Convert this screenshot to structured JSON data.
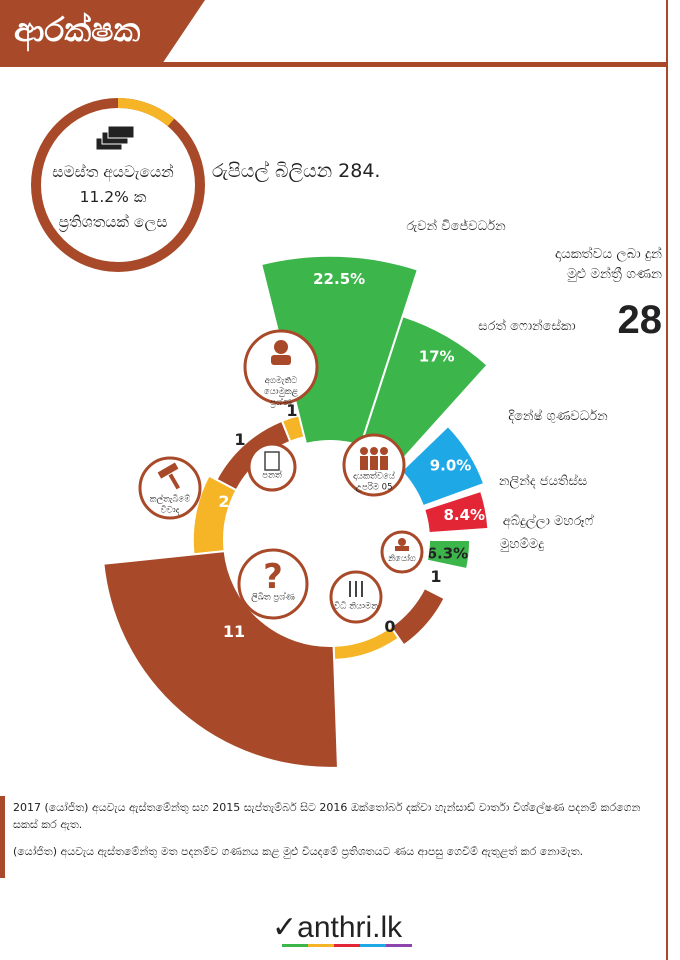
{
  "header": {
    "title": "ආරක්ෂක",
    "accent_color": "#a84a2a"
  },
  "budget": {
    "amount_text": "රුපියල් බිලියන 284.",
    "share_lines": [
      "සමස්ත අයවැයෙන්",
      "11.2% ක",
      "ප්‍රතිශතයක් ලෙස"
    ],
    "share_value": 11.2,
    "icon": "money-stack-icon"
  },
  "side_stat": {
    "label": "දායකත්වය ලබා දුන් මුළු මන්ත්‍රී ගණන",
    "value": "28"
  },
  "chart_data": [
    {
      "type": "bar",
      "subtype": "radial-bar",
      "title": "",
      "unit": "%",
      "categories": [
        "රුවන් විජේවර්ධන",
        "සරත් ෆොන්සේකා",
        "දිනේෂ් ගුණවර්ධන",
        "නලින්ද ජයතිස්ස",
        "අබ්දුල්ලා මහරූෆ් මුහම්මදු"
      ],
      "values": [
        22.5,
        17,
        9.0,
        8.4,
        6.3
      ],
      "value_labels": [
        "22.5%",
        "17%",
        "9.0%",
        "8.4%",
        "6.3%"
      ],
      "colors": [
        "#3cb54a",
        "#3cb54a",
        "#1fa8e6",
        "#e32636",
        "#3cb54a"
      ],
      "center_icon": "three-people-icon",
      "center_label": [
        "දායකත්වයේ",
        "උපරිම 05"
      ]
    },
    {
      "type": "bar",
      "subtype": "radial-bar",
      "title": "",
      "categories": [
        "අගමැතිට යොමුකළ ප්‍රශ්ණ",
        "පනත්",
        "කල්තැබීමේ විවාද",
        "ලිඛිත ප්‍රශ්ණ",
        "විධි නියාමන",
        "නියෝග"
      ],
      "values": [
        1,
        1,
        2,
        11,
        0,
        1
      ],
      "value_labels": [
        "1",
        "1",
        "2",
        "11",
        "0",
        "1"
      ],
      "colors": [
        "#f5b526",
        "#a84a2a",
        "#f5b526",
        "#a84a2a",
        "#f5b526",
        "#a84a2a"
      ],
      "icons": [
        "person-icon",
        "document-icon",
        "gavel-icon",
        "question-mark-icon",
        "sliders-icon",
        "stamp-icon"
      ]
    }
  ],
  "footer": {
    "notes": [
      "2017 (යෝජිත) අයවැය ඇස්තමේන්තු සහ 2015 සැප්තැම්බර් සිට 2016 ඔක්තෝබර් දක්වා හැන්සාඩ් වාර්තා විශ්ලේෂණ පදනම් කරගෙන සකස් කර ඇත.",
      "(යෝජිත) අයවැය ඇස්තමේන්තු මත පදනම්ව ගණනය කළ මුළු වියදමේ ප්‍රතිශතයට ණය ආපසු ගෙවීම් ඇතුළත් කර නොමැත."
    ]
  },
  "brand": {
    "text": "anthri.lk",
    "colors": [
      "#3cb54a",
      "#f5b526",
      "#e32636",
      "#1fa8e6",
      "#8e44ad"
    ]
  }
}
